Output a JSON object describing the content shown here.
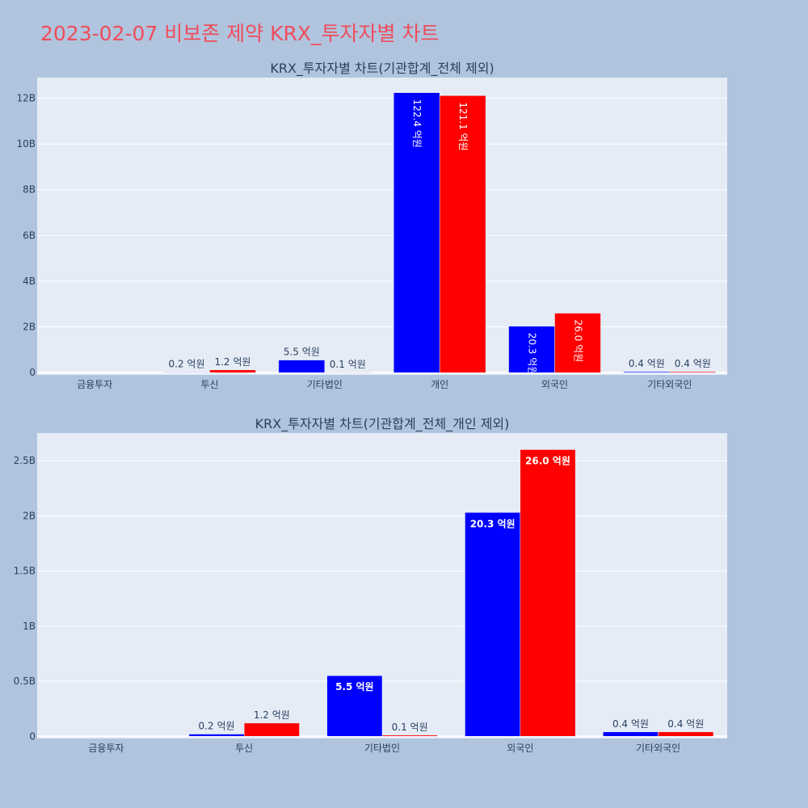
{
  "page": {
    "title": "2023-02-07 비보존 제약 KRX_투자자별 차트"
  },
  "colors": {
    "series_1": "#0000ff",
    "series_2": "#ff0000",
    "plot_bg": "#e5ecf6",
    "page_bg": "#b0c4de",
    "title": "#ef4d5c",
    "text": "#2a3f5f"
  },
  "chart_data": [
    {
      "type": "bar",
      "title": "KRX_투자자별 차트(기관합계_전체 제외)",
      "categories": [
        "금융투자",
        "투신",
        "기타법인",
        "개인",
        "외국인",
        "기타외국인"
      ],
      "series": [
        {
          "values": [
            0,
            20000000,
            550000000,
            12240000000,
            2030000000,
            40000000
          ],
          "labels": [
            "",
            "0.2 억원",
            "5.5 억원",
            "122.4 억원",
            "20.3 억원",
            "0.4 억원"
          ]
        },
        {
          "values": [
            0,
            120000000,
            10000000,
            12110000000,
            2600000000,
            40000000
          ],
          "labels": [
            "",
            "1.2 억원",
            "0.1 억원",
            "121.1 억원",
            "26.0 억원",
            "0.4 억원"
          ]
        }
      ],
      "yticks": [
        0,
        2000000000,
        4000000000,
        6000000000,
        8000000000,
        10000000000,
        12000000000
      ],
      "ytick_labels": [
        "0",
        "2B",
        "4B",
        "6B",
        "8B",
        "10B",
        "12B"
      ],
      "ylim": [
        -100000000,
        12900000000
      ],
      "grid": true,
      "legend": "none"
    },
    {
      "type": "bar",
      "title": "KRX_투자자별 차트(기관합계_전체_개인 제외)",
      "categories": [
        "금융투자",
        "투신",
        "기타법인",
        "외국인",
        "기타외국인"
      ],
      "series": [
        {
          "values": [
            0,
            20000000,
            550000000,
            2030000000,
            40000000
          ],
          "labels": [
            "",
            "0.2 억원",
            "5.5 억원",
            "20.3 억원",
            "0.4 억원"
          ]
        },
        {
          "values": [
            0,
            120000000,
            10000000,
            2600000000,
            40000000
          ],
          "labels": [
            "",
            "1.2 억원",
            "0.1 억원",
            "26.0 억원",
            "0.4 억원"
          ]
        }
      ],
      "yticks": [
        0,
        500000000,
        1000000000,
        1500000000,
        2000000000,
        2500000000
      ],
      "ytick_labels": [
        "0",
        "0.5B",
        "1B",
        "1.5B",
        "2B",
        "2.5B"
      ],
      "ylim": [
        -20000000,
        2750000000
      ],
      "grid": true,
      "legend": "none"
    }
  ]
}
